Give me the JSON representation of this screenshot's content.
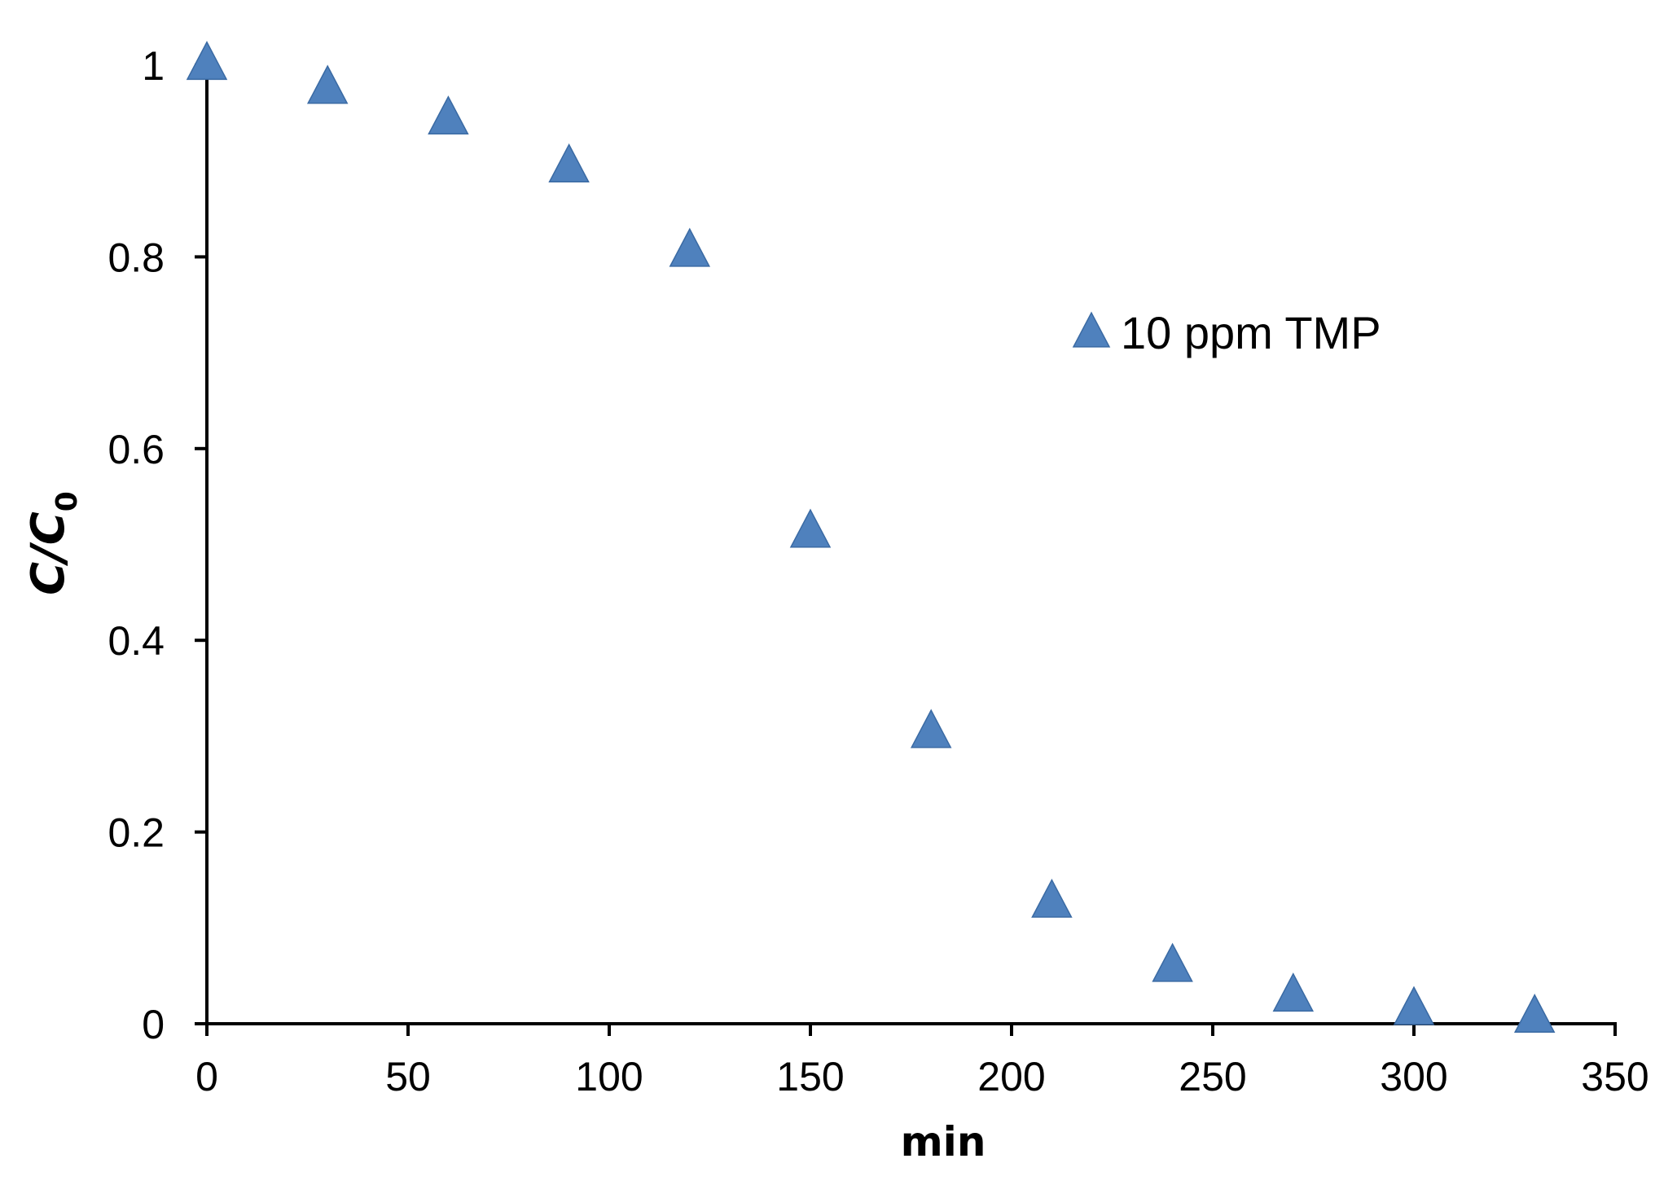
{
  "chart_data": {
    "type": "scatter",
    "x": [
      0,
      30,
      60,
      90,
      120,
      150,
      180,
      210,
      240,
      270,
      300,
      330
    ],
    "series": [
      {
        "name": "10 ppm TMP",
        "values": [
          1.0,
          0.975,
          0.943,
          0.893,
          0.805,
          0.512,
          0.303,
          0.126,
          0.059,
          0.028,
          0.014,
          0.006
        ],
        "marker": "triangle",
        "color": "#4F81BD"
      }
    ],
    "title": "",
    "xlabel": "min",
    "ylabel_main": "C/C",
    "ylabel_sub": "0",
    "xlim": [
      0,
      350
    ],
    "ylim": [
      0,
      1
    ],
    "x_ticks": [
      0,
      50,
      100,
      150,
      200,
      250,
      300,
      350
    ],
    "y_ticks": [
      0,
      0.2,
      0.4,
      0.6,
      0.8,
      1
    ],
    "x_tick_labels": [
      "0",
      "50",
      "100",
      "150",
      "200",
      "250",
      "300",
      "350"
    ],
    "y_tick_labels": [
      "0",
      "0.2",
      "0.4",
      "0.6",
      "0.8",
      "1"
    ],
    "grid": false,
    "legend_position": "top-right"
  }
}
